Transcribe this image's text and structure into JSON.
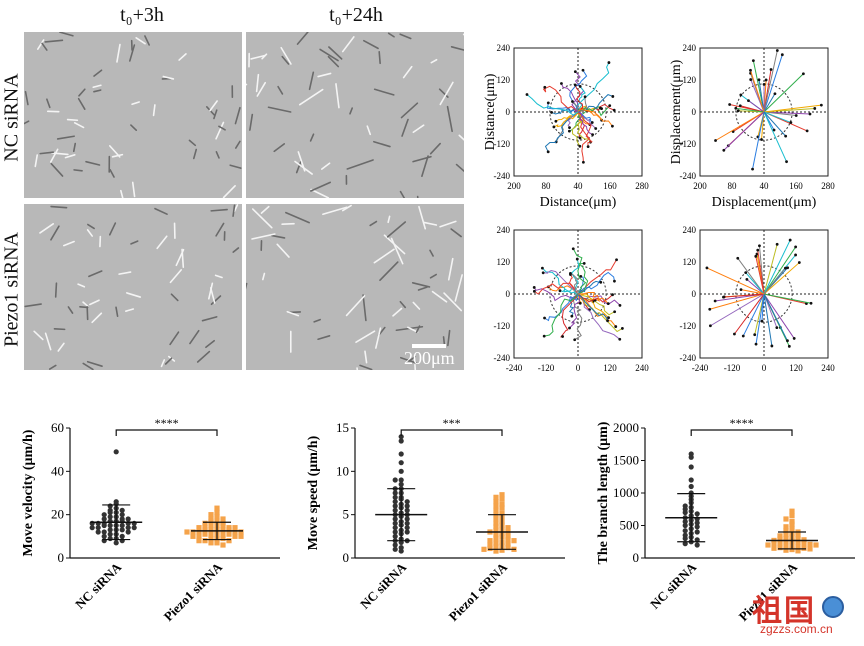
{
  "figure": {
    "col_titles": [
      "t₀+3h",
      "t₀+24h"
    ],
    "row_labels": [
      "NC siRNA",
      "Piezo1 siRNA"
    ],
    "scale_bar": "200μm"
  },
  "tracks": [
    {
      "xlabel": "Distance(μm)",
      "ylabel": "Distance(μm)",
      "xticks": [
        "200",
        "80",
        "40",
        "160",
        "280"
      ],
      "yticks": [
        "240",
        "120",
        "0",
        "-120",
        "-240"
      ]
    },
    {
      "xlabel": "Displacement(μm)",
      "ylabel": "Displacement(μm)",
      "xticks": [
        "200",
        "80",
        "40",
        "160",
        "280"
      ],
      "yticks": [
        "240",
        "120",
        "0",
        "-120",
        "-240"
      ]
    },
    {
      "xlabel": "",
      "ylabel": "",
      "xticks": [
        "-240",
        "-120",
        "0",
        "120",
        "240"
      ],
      "yticks": [
        "240",
        "120",
        "0",
        "-120",
        "-240"
      ]
    },
    {
      "xlabel": "",
      "ylabel": "",
      "xticks": [
        "-240",
        "-120",
        "0",
        "120",
        "240"
      ],
      "yticks": [
        "240",
        "120",
        "0",
        "-120",
        "-240"
      ]
    }
  ],
  "chart_data": [
    {
      "type": "scatter",
      "ylabel": "Move velocity (μm/h)",
      "categories": [
        "NC siRNA",
        "Piezo1 siRNA"
      ],
      "ylim": [
        0,
        60
      ],
      "yticks": [
        0,
        20,
        40,
        60
      ],
      "significance": "****",
      "series": [
        {
          "mean": 16.5,
          "sd": 8,
          "values": [
            49,
            26,
            25,
            24,
            23,
            22,
            22,
            21,
            21,
            20,
            20,
            19,
            19,
            18,
            18,
            18,
            17,
            17,
            17,
            16,
            16,
            16,
            16,
            16,
            15,
            15,
            15,
            15,
            14,
            14,
            14,
            14,
            13,
            13,
            13,
            12,
            12,
            12,
            11,
            11,
            10,
            10,
            9,
            9,
            8,
            8,
            7
          ]
        },
        {
          "mean": 12.5,
          "sd": 4,
          "values": [
            23,
            21,
            20,
            19,
            18,
            18,
            17,
            17,
            16,
            16,
            15,
            15,
            15,
            14,
            14,
            14,
            14,
            13,
            13,
            13,
            13,
            13,
            12,
            12,
            12,
            12,
            12,
            11,
            11,
            11,
            11,
            11,
            10,
            10,
            10,
            10,
            9,
            9,
            9,
            8,
            8,
            8,
            7,
            7,
            6
          ]
        }
      ]
    },
    {
      "type": "scatter",
      "ylabel": "Move speed (μm/h)",
      "categories": [
        "NC siRNA",
        "Piezo1 siRNA"
      ],
      "ylim": [
        0,
        15
      ],
      "yticks": [
        0,
        5,
        10,
        15
      ],
      "significance": "***",
      "series": [
        {
          "mean": 5.0,
          "sd": 3.0,
          "values": [
            14,
            13.5,
            12,
            11,
            10,
            9,
            9,
            8.5,
            8,
            8,
            7.5,
            7.5,
            7,
            7,
            6.8,
            6.5,
            6.5,
            6.2,
            6,
            6,
            5.8,
            5.5,
            5.5,
            5.2,
            5,
            5,
            4.8,
            4.5,
            4.5,
            4.2,
            4,
            4,
            3.8,
            3.5,
            3.5,
            3.2,
            3,
            3,
            2.8,
            2.5,
            2.2,
            2,
            2,
            1.8,
            1.5,
            1.2,
            1,
            0.8
          ]
        },
        {
          "mean": 3.0,
          "sd": 2.0,
          "values": [
            7.3,
            7,
            6.8,
            6.5,
            6.2,
            6,
            5.8,
            5.5,
            5.2,
            5,
            4.8,
            4.5,
            4.2,
            4,
            3.8,
            3.6,
            3.5,
            3.3,
            3.2,
            3,
            3,
            2.8,
            2.7,
            2.5,
            2.4,
            2.2,
            2.1,
            2,
            2,
            1.8,
            1.7,
            1.6,
            1.5,
            1.4,
            1.3,
            1.2,
            1.1,
            1,
            1,
            0.9,
            0.8
          ]
        }
      ]
    },
    {
      "type": "scatter",
      "ylabel": "The branch length (μm)",
      "categories": [
        "NC siRNA",
        "Piezo1 siRNA"
      ],
      "ylim": [
        0,
        2000
      ],
      "yticks": [
        0,
        500,
        1000,
        1500,
        2000
      ],
      "significance": "****",
      "series": [
        {
          "mean": 620,
          "sd": 370,
          "values": [
            1600,
            1550,
            1400,
            1200,
            1100,
            1000,
            950,
            900,
            850,
            800,
            780,
            750,
            720,
            700,
            680,
            650,
            620,
            600,
            580,
            560,
            540,
            520,
            500,
            480,
            450,
            420,
            400,
            380,
            350,
            320,
            300,
            280,
            250,
            220,
            200
          ]
        },
        {
          "mean": 270,
          "sd": 130,
          "values": [
            720,
            650,
            600,
            560,
            520,
            480,
            450,
            420,
            400,
            380,
            360,
            350,
            340,
            320,
            300,
            300,
            290,
            280,
            270,
            260,
            250,
            240,
            230,
            220,
            220,
            210,
            200,
            200,
            190,
            180,
            170,
            160,
            150,
            150,
            140,
            130,
            120,
            110
          ]
        }
      ]
    }
  ],
  "watermark": {
    "brand": "祖国",
    "site": "zgzzs.com.cn"
  }
}
